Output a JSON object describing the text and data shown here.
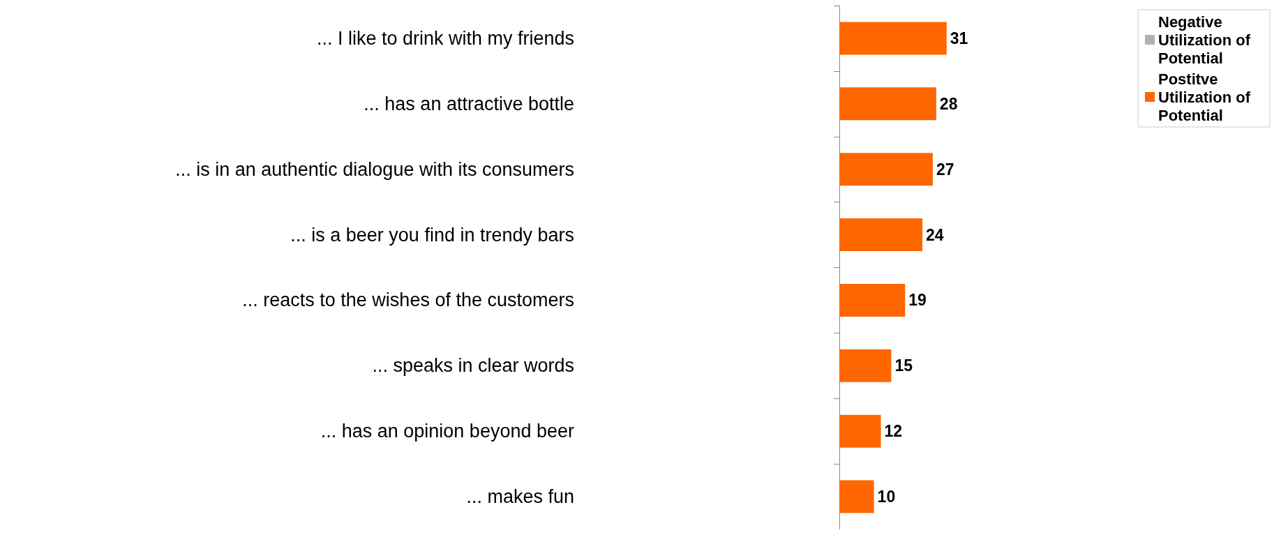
{
  "chart_data": {
    "type": "bar",
    "orientation": "horizontal",
    "stacked": true,
    "categories": [
      "... I like to drink with my friends",
      "... has an attractive bottle",
      "... is in an authentic dialogue with its consumers",
      "... is a beer you find in trendy bars",
      "... reacts to the wishes of the customers",
      "... speaks in clear words",
      "... has an opinion beyond beer",
      "... makes fun"
    ],
    "series": [
      {
        "name": "Negative Utilization of Potential",
        "color": "#b2b2b2",
        "values": [
          null,
          null,
          null,
          null,
          null,
          null,
          null,
          null
        ]
      },
      {
        "name": "Postitve Utilization of Potential",
        "color": "#ff6600",
        "values": [
          31,
          28,
          27,
          24,
          19,
          15,
          12,
          10
        ]
      }
    ],
    "data_labels": true,
    "legend": "top right"
  }
}
